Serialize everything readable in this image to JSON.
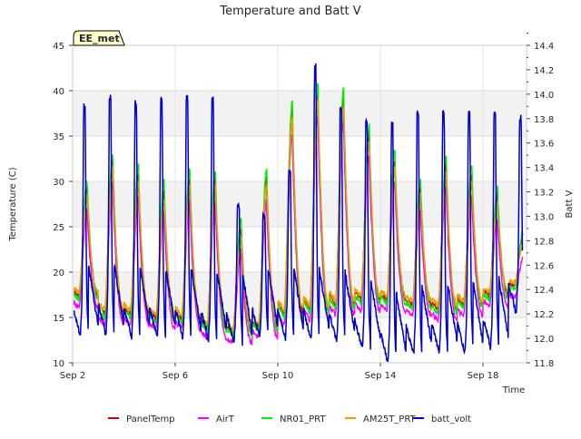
{
  "chart_data": {
    "type": "line",
    "title": "Temperature and Batt V",
    "xlabel": "Time",
    "ylabel": "Temperature (C)",
    "y2label": "Batt V",
    "station_label": "EE_met",
    "xlim": [
      2.0,
      19.7
    ],
    "ylim": [
      10,
      45
    ],
    "y2lim": [
      11.8,
      14.4
    ],
    "x_ticks": [
      {
        "value": 2,
        "label": "Sep 2"
      },
      {
        "value": 6,
        "label": "Sep 6"
      },
      {
        "value": 10,
        "label": "Sep 10"
      },
      {
        "value": 14,
        "label": "Sep 14"
      },
      {
        "value": 18,
        "label": "Sep 18"
      }
    ],
    "y_ticks": [
      10,
      15,
      20,
      25,
      30,
      35,
      40,
      45
    ],
    "y2_ticks": [
      "11.8",
      "12.0",
      "12.2",
      "12.4",
      "12.6",
      "12.8",
      "13.0",
      "13.2",
      "13.4",
      "13.6",
      "13.8",
      "14.0",
      "14.2",
      "14.4"
    ],
    "grid": true,
    "legend_position": "bottom",
    "colors": {
      "PanelTemp": "#cc0000",
      "AirT": "#ff00ff",
      "NR01_PRT": "#00ee00",
      "AM25T_PRT": "#e8a000",
      "batt_volt": "#0000cc",
      "band": "#f2f2f2"
    },
    "daily_extremes": {
      "days": [
        2.3,
        3.3,
        4.3,
        5.3,
        6.3,
        7.3,
        8.3,
        9.3,
        10.3,
        11.3,
        12.3,
        13.3,
        14.3,
        15.3,
        16.3,
        17.3,
        18.3,
        19.3
      ],
      "temp_max": [
        29.5,
        32.5,
        31,
        29.2,
        30.5,
        30.5,
        25,
        30.5,
        38,
        40,
        39.5,
        35.5,
        32.5,
        29.5,
        32,
        31,
        28.5,
        24
      ],
      "temp_min": [
        17,
        15,
        15,
        14.5,
        14.5,
        13.5,
        13,
        13.5,
        15,
        15.5,
        16,
        16.5,
        16.5,
        16,
        15.5,
        16,
        17,
        18
      ],
      "batt_max": [
        13.9,
        13.97,
        13.93,
        13.97,
        13.97,
        13.98,
        13.08,
        13.0,
        13.38,
        14.23,
        13.88,
        13.79,
        13.75,
        13.86,
        13.87,
        13.86,
        13.84,
        13.81
      ],
      "batt_min": [
        12.02,
        12.03,
        12.01,
        12.01,
        12.0,
        11.98,
        11.96,
        12.0,
        12.0,
        11.99,
        11.97,
        11.91,
        11.8,
        11.86,
        11.88,
        11.88,
        11.92,
        12.2
      ]
    },
    "series": [
      {
        "name": "PanelTemp",
        "offset_max": 0.0,
        "offset_min": 0.4
      },
      {
        "name": "AirT",
        "offset_max": -2.5,
        "offset_min": -0.8
      },
      {
        "name": "NR01_PRT",
        "offset_max": 0.8,
        "offset_min": 0.0
      },
      {
        "name": "AM25T_PRT",
        "offset_max": -1.0,
        "offset_min": 0.8
      },
      {
        "name": "batt_volt",
        "axis": "right"
      }
    ]
  }
}
